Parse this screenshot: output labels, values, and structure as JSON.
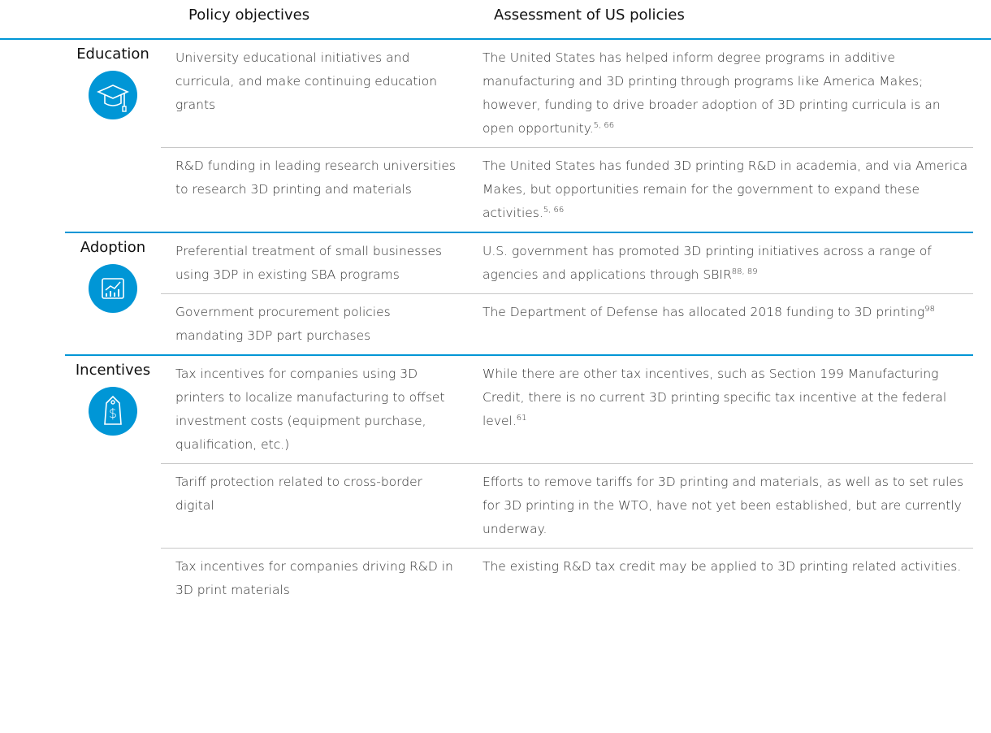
{
  "table": {
    "headers": [
      "Policy objectives",
      "Assessment of US policies"
    ],
    "groups": [
      {
        "name": "Education",
        "rows": [
          {
            "objective": "University educational initiatives and curricula, and make continuing education grants",
            "assessment": "The United States has helped inform degree programs in additive manufacturing and 3D printing through programs like America Makes; however, funding to drive broader adoption of 3D printing curricula is an open opportunity.",
            "ref": "5, 66"
          },
          {
            "objective": "R&D funding in leading research universities to research 3D printing and materials",
            "assessment": "The United States has funded 3D printing R&D in academia, and via America Makes, but opportunities remain for the government to expand these activities.",
            "ref": "5, 66"
          }
        ]
      },
      {
        "name": "Adoption",
        "rows": [
          {
            "objective": "Preferential treatment of small businesses using 3DP in existing SBA programs",
            "assessment": "U.S. government has promoted 3D printing initiatives across a range of agencies and applications through SBIR",
            "ref": "88, 89"
          },
          {
            "objective": "Government procurement policies mandating 3DP part purchases",
            "assessment": "The Department of Defense has allocated 2018 funding to 3D printing",
            "ref": "98"
          }
        ]
      },
      {
        "name": "Incentives",
        "rows": [
          {
            "objective": "Tax incentives for companies using 3D printers to localize manufacturing to offset investment costs (equipment purchase, qualification, etc.)",
            "assessment": "While there are other tax incentives, such as Section 199 Manufacturing Credit, there is no current 3D printing specific tax incentive at the federal level.",
            "ref": "61"
          },
          {
            "objective": "Tariff protection related to cross-border digital",
            "assessment": "Efforts to remove tariffs for 3D printing and materials, as well as to set rules for 3D printing in the WTO, have not yet been established, but are currently underway."
          },
          {
            "objective": "Tax incentives for companies driving R&D in 3D print materials",
            "assessment": "The existing R&D tax credit may be applied to 3D printing related activities."
          }
        ]
      }
    ]
  }
}
